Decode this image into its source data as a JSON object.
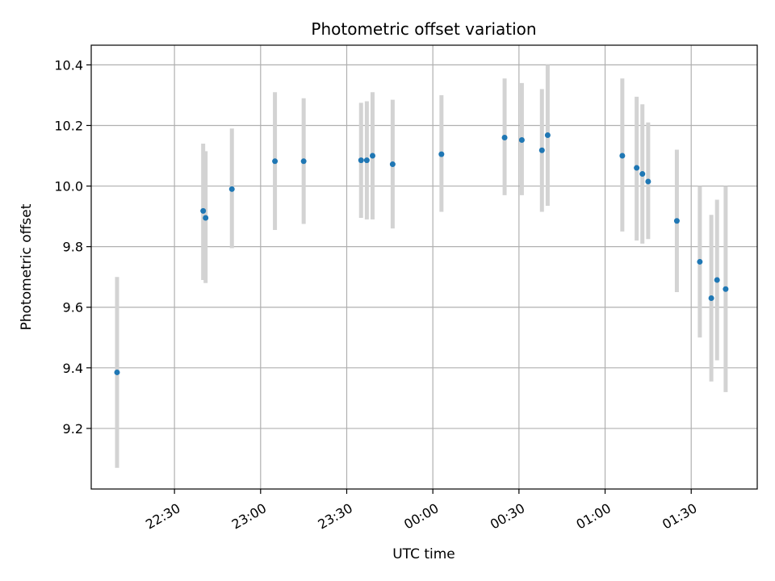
{
  "chart_data": {
    "type": "scatter",
    "title": "Photometric offset variation",
    "xlabel": "UTC time",
    "ylabel": "Photometric offset",
    "x_ticks": [
      "22:30",
      "23:00",
      "23:30",
      "00:00",
      "00:30",
      "01:00",
      "01:30"
    ],
    "y_ticks": [
      "9.2",
      "9.4",
      "9.6",
      "9.8",
      "10.0",
      "10.2",
      "10.4"
    ],
    "x_tick_minutes": [
      -90,
      -60,
      -30,
      0,
      30,
      60,
      90
    ],
    "y_tick_values": [
      9.2,
      9.4,
      9.6,
      9.8,
      10.0,
      10.2,
      10.4
    ],
    "xlim_minutes": [
      -119,
      113
    ],
    "ylim": [
      9.0,
      10.465
    ],
    "grid": true,
    "point_color": "#1f77b4",
    "errorbar_color": "#d3d3d3",
    "series": [
      {
        "points": [
          {
            "t": "22:10",
            "y": 9.385,
            "lo": 9.07,
            "hi": 9.7
          },
          {
            "t": "22:40",
            "y": 9.918,
            "lo": 9.69,
            "hi": 10.14
          },
          {
            "t": "22:40",
            "y": 9.895,
            "lo": 9.68,
            "hi": 10.115
          },
          {
            "t": "22:50",
            "y": 9.99,
            "lo": 9.795,
            "hi": 10.19
          },
          {
            "t": "23:05",
            "y": 10.082,
            "lo": 9.855,
            "hi": 10.31
          },
          {
            "t": "23:15",
            "y": 10.082,
            "lo": 9.875,
            "hi": 10.29
          },
          {
            "t": "23:35",
            "y": 10.085,
            "lo": 9.895,
            "hi": 10.275
          },
          {
            "t": "23:37",
            "y": 10.085,
            "lo": 9.89,
            "hi": 10.28
          },
          {
            "t": "23:39",
            "y": 10.1,
            "lo": 9.89,
            "hi": 10.31
          },
          {
            "t": "23:46",
            "y": 10.072,
            "lo": 9.86,
            "hi": 10.285
          },
          {
            "t": "00:03",
            "y": 10.105,
            "lo": 9.915,
            "hi": 10.3
          },
          {
            "t": "00:25",
            "y": 10.16,
            "lo": 9.97,
            "hi": 10.355
          },
          {
            "t": "00:31",
            "y": 10.152,
            "lo": 9.97,
            "hi": 10.34
          },
          {
            "t": "00:38",
            "y": 10.118,
            "lo": 9.915,
            "hi": 10.32
          },
          {
            "t": "00:40",
            "y": 10.168,
            "lo": 9.935,
            "hi": 10.4
          },
          {
            "t": "01:06",
            "y": 10.1,
            "lo": 9.85,
            "hi": 10.355
          },
          {
            "t": "01:11",
            "y": 10.06,
            "lo": 9.82,
            "hi": 10.295
          },
          {
            "t": "01:13",
            "y": 10.04,
            "lo": 9.81,
            "hi": 10.27
          },
          {
            "t": "01:15",
            "y": 10.015,
            "lo": 9.825,
            "hi": 10.21
          },
          {
            "t": "01:25",
            "y": 9.885,
            "lo": 9.65,
            "hi": 10.12
          },
          {
            "t": "01:33",
            "y": 9.75,
            "lo": 9.5,
            "hi": 10.0
          },
          {
            "t": "01:37",
            "y": 9.63,
            "lo": 9.355,
            "hi": 9.905
          },
          {
            "t": "01:39",
            "y": 9.69,
            "lo": 9.425,
            "hi": 9.955
          },
          {
            "t": "01:42",
            "y": 9.66,
            "lo": 9.32,
            "hi": 10.0
          }
        ]
      }
    ]
  }
}
